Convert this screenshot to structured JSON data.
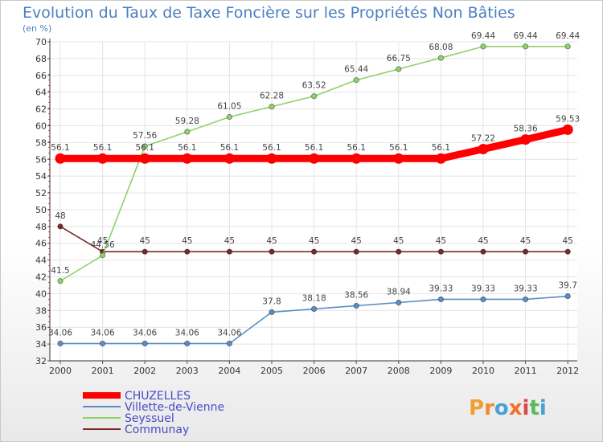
{
  "chart_data": {
    "type": "line",
    "title": "Evolution du Taux de Taxe Foncière sur les Propriétés Non Bâties",
    "ylabel": "(en %)",
    "ylim": [
      32,
      70
    ],
    "yticks": [
      "32",
      "34",
      "36",
      "38",
      "40",
      "42",
      "44",
      "46",
      "48",
      "50",
      "52",
      "54",
      "56",
      "58",
      "60",
      "62",
      "64",
      "66",
      "68",
      "70"
    ],
    "categories": [
      "2000",
      "2001",
      "2002",
      "2003",
      "2004",
      "2005",
      "2006",
      "2007",
      "2008",
      "2009",
      "2010",
      "2011",
      "2012"
    ],
    "series": [
      {
        "name": "CHUZELLES",
        "color": "#ff0000",
        "values": [
          56.1,
          56.1,
          56.1,
          56.1,
          56.1,
          56.1,
          56.1,
          56.1,
          56.1,
          56.1,
          57.22,
          58.36,
          59.53
        ],
        "labels": [
          "56.1",
          "56.1",
          "56.1",
          "56.1",
          "56.1",
          "56.1",
          "56.1",
          "56.1",
          "56.1",
          "56.1",
          "57.22",
          "58.36",
          "59.53"
        ]
      },
      {
        "name": "Villette-de-Vienne",
        "color": "#5b8ec4",
        "values": [
          34.06,
          34.06,
          34.06,
          34.06,
          34.06,
          37.8,
          38.18,
          38.56,
          38.94,
          39.33,
          39.33,
          39.33,
          39.7
        ],
        "labels": [
          "34.06",
          "34.06",
          "34.06",
          "34.06",
          "34.06",
          "37.8",
          "38.18",
          "38.56",
          "38.94",
          "39.33",
          "39.33",
          "39.33",
          "39.7"
        ]
      },
      {
        "name": "Seyssuel",
        "color": "#8fd16a",
        "values": [
          41.5,
          44.56,
          57.56,
          59.28,
          61.05,
          62.28,
          63.52,
          65.44,
          66.75,
          68.08,
          69.44,
          69.44,
          69.44
        ],
        "labels": [
          "41.5",
          "44.56",
          "57.56",
          "59.28",
          "61.05",
          "62.28",
          "63.52",
          "65.44",
          "66.75",
          "68.08",
          "69.44",
          "69.44",
          "69.44"
        ]
      },
      {
        "name": "Communay",
        "color": "#7a2a2a",
        "values": [
          48,
          45,
          45,
          45,
          45,
          45,
          45,
          45,
          45,
          45,
          45,
          45,
          45
        ],
        "labels": [
          "48",
          "45",
          "45",
          "45",
          "45",
          "45",
          "45",
          "45",
          "45",
          "45",
          "45",
          "45",
          "45"
        ]
      }
    ],
    "legend_position": "bottom-left",
    "grid": true
  },
  "logo": {
    "text": "Proxiti"
  }
}
